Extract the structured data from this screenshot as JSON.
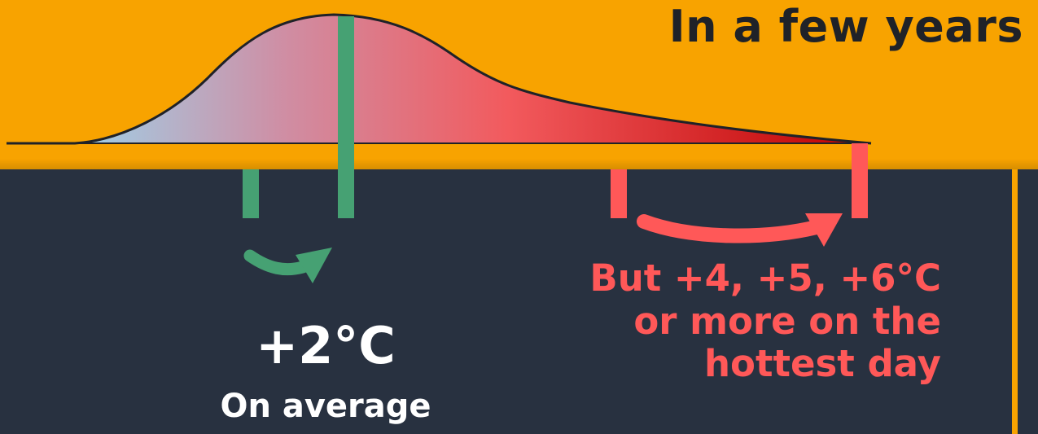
{
  "header": {
    "title": "In a few years"
  },
  "annotations": {
    "average_change": "+2°C",
    "average_caption": "On average",
    "extreme_caption": "But +4, +5, +6°C\nor more on the\nhottest day"
  },
  "colors": {
    "orange": "#f8a300",
    "navy": "#283140",
    "green": "#46a173",
    "red": "#ff5858",
    "curve_start": "#8ee7ff",
    "curve_end": "#be0000"
  }
}
